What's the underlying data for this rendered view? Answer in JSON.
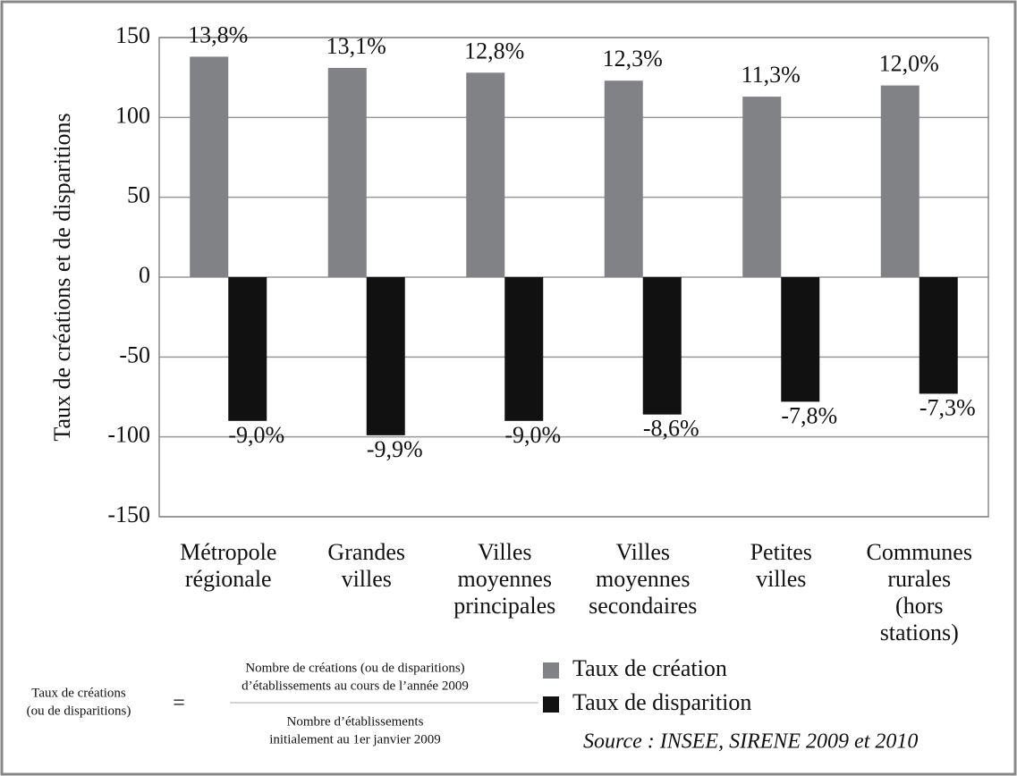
{
  "chart_data": {
    "type": "bar",
    "ylabel": "Taux de créations et de disparitions",
    "categories": [
      "Métropole\nrégionale",
      "Grandes\nvilles",
      "Villes\nmoyennes\nprincipales",
      "Villes\nmoyennes\nsecondaires",
      "Petites\nvilles",
      "Communes\nrurales\n(hors\nstations)"
    ],
    "series": [
      {
        "name": "Taux de création",
        "color": "#808285",
        "values": [
          138,
          131,
          128,
          123,
          113,
          120
        ],
        "value_labels": [
          "13,8%",
          "13,1%",
          "12,8%",
          "12,3%",
          "11,3%",
          "12,0%"
        ]
      },
      {
        "name": "Taux de disparition",
        "color": "#111111",
        "values": [
          -90,
          -99,
          -90,
          -86,
          -78,
          -73
        ],
        "value_labels": [
          "-9,0%",
          "-9,9%",
          "-9,0%",
          "-8,6%",
          "-7,8%",
          "-7,3%"
        ]
      }
    ],
    "ylim": [
      -150,
      150
    ],
    "yticks": [
      -150,
      -100,
      -50,
      0,
      50,
      100,
      150
    ],
    "grid": true,
    "formula": {
      "lhs": [
        "Taux de créations",
        "(ou de disparitions)"
      ],
      "equals": "=",
      "numerator": [
        "Nombre de créations (ou de disparitions)",
        "d’établissements au cours de l’année 2009"
      ],
      "denominator": [
        "Nombre d’établissements",
        "initialement au 1er janvier 2009"
      ]
    },
    "source": "Source : INSEE, SIRENE 2009 et 2010"
  }
}
